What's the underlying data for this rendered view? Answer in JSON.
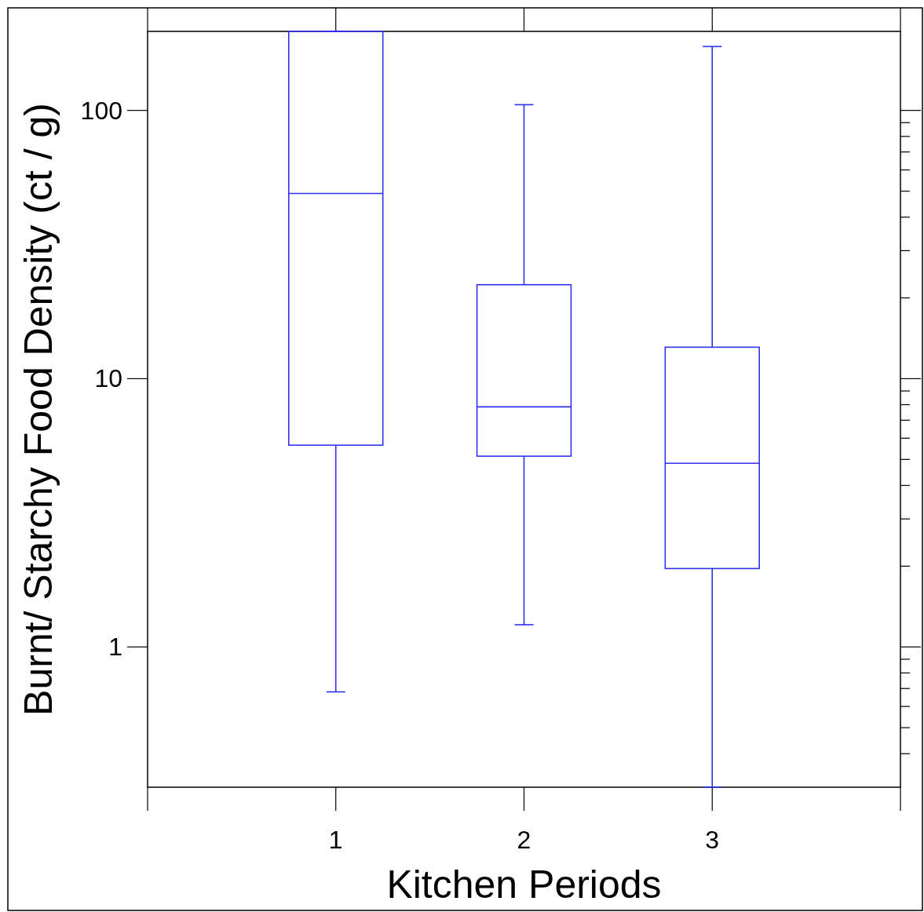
{
  "chart_data": {
    "type": "box",
    "xlabel": "Kitchen Periods",
    "ylabel": "Burnt/ Starchy Food Density (ct / g)",
    "categories": [
      "1",
      "2",
      "3"
    ],
    "color": "#3030f0",
    "log": true,
    "ylim": [
      0.3,
      197
    ],
    "yticks": [
      {
        "value": 0.4,
        "label": null
      },
      {
        "value": 0.5,
        "label": null
      },
      {
        "value": 0.6,
        "label": null
      },
      {
        "value": 0.7,
        "label": null
      },
      {
        "value": 0.8,
        "label": null
      },
      {
        "value": 0.9,
        "label": null
      },
      1,
      {
        "value": 2,
        "label": null
      },
      {
        "value": 3,
        "label": null
      },
      {
        "value": 4,
        "label": null
      },
      {
        "value": 5,
        "label": null
      },
      {
        "value": 6,
        "label": null
      },
      {
        "value": 7,
        "label": null
      },
      {
        "value": 8,
        "label": null
      },
      {
        "value": 9,
        "label": null
      },
      10,
      {
        "value": 20,
        "label": null
      },
      {
        "value": 30,
        "label": null
      },
      {
        "value": 40,
        "label": null
      },
      {
        "value": 50,
        "label": null
      },
      {
        "value": 60,
        "label": null
      },
      {
        "value": 70,
        "label": null
      },
      {
        "value": 80,
        "label": null
      },
      {
        "value": 90,
        "label": null
      },
      100
    ],
    "boxes": [
      {
        "low": 0.68,
        "q1": 5.65,
        "median": 49,
        "q3": 197,
        "high": 197
      },
      {
        "low": 1.21,
        "q1": 5.14,
        "median": 7.85,
        "q3": 22.4,
        "high": 105
      },
      {
        "low": 0.3,
        "q1": 1.96,
        "median": 4.84,
        "q3": 13.1,
        "high": 173
      }
    ],
    "grid": false
  }
}
